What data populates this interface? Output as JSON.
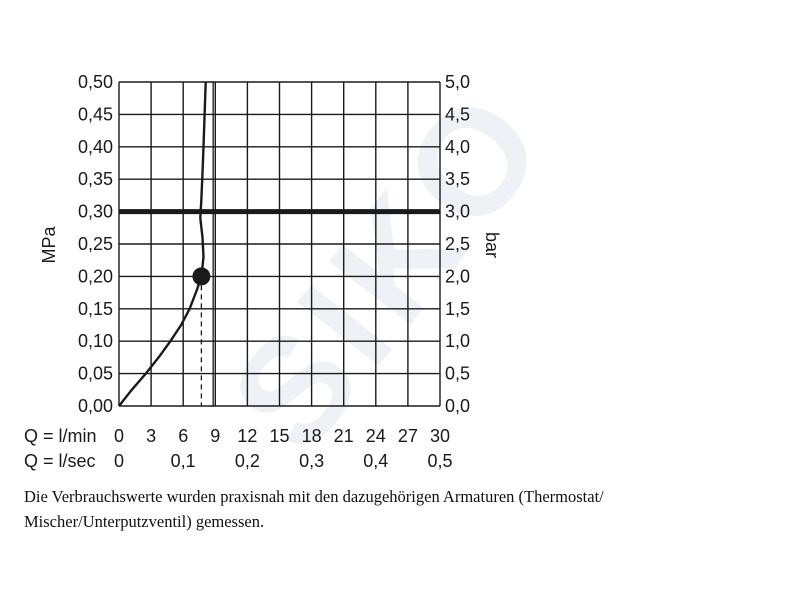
{
  "chart_data": {
    "type": "line",
    "y_left": {
      "label": "MPa",
      "range": [
        0,
        0.5
      ],
      "ticks": [
        "0,00",
        "0,05",
        "0,10",
        "0,15",
        "0,20",
        "0,25",
        "0,30",
        "0,35",
        "0,40",
        "0,45",
        "0,50"
      ]
    },
    "y_right": {
      "label": "bar",
      "range": [
        0,
        5
      ],
      "ticks": [
        "0,0",
        "0,5",
        "1,0",
        "1,5",
        "2,0",
        "2,5",
        "3,0",
        "3,5",
        "4,0",
        "4,5",
        "5,0"
      ]
    },
    "x": {
      "range": [
        0,
        30
      ],
      "rows": [
        {
          "label": "Q = l/min",
          "ticks": [
            {
              "v": 0,
              "t": "0"
            },
            {
              "v": 3,
              "t": "3"
            },
            {
              "v": 6,
              "t": "6"
            },
            {
              "v": 9,
              "t": "9"
            },
            {
              "v": 12,
              "t": "12"
            },
            {
              "v": 15,
              "t": "15"
            },
            {
              "v": 18,
              "t": "18"
            },
            {
              "v": 21,
              "t": "21"
            },
            {
              "v": 24,
              "t": "24"
            },
            {
              "v": 27,
              "t": "27"
            },
            {
              "v": 30,
              "t": "30"
            }
          ]
        },
        {
          "label": "Q = l/sec",
          "ticks": [
            {
              "v": 0,
              "t": "0"
            },
            {
              "v": 6,
              "t": "0,1"
            },
            {
              "v": 12,
              "t": "0,2"
            },
            {
              "v": 18,
              "t": "0,3"
            },
            {
              "v": 24,
              "t": "0,4"
            },
            {
              "v": 30,
              "t": "0,5"
            }
          ]
        }
      ]
    },
    "grid": true,
    "series": [
      {
        "style": "solid",
        "points": [
          [
            0,
            0
          ],
          [
            1.2,
            0.025
          ],
          [
            2.5,
            0.05
          ],
          [
            3.7,
            0.075
          ],
          [
            4.8,
            0.1
          ],
          [
            5.8,
            0.125
          ],
          [
            6.6,
            0.15
          ],
          [
            7.3,
            0.18
          ],
          [
            7.7,
            0.2
          ],
          [
            7.9,
            0.23
          ],
          [
            7.8,
            0.26
          ],
          [
            7.6,
            0.29
          ],
          [
            7.7,
            0.32
          ],
          [
            7.8,
            0.36
          ],
          [
            7.9,
            0.4
          ],
          [
            8.0,
            0.45
          ],
          [
            8.1,
            0.5
          ]
        ]
      }
    ],
    "highlight_point": {
      "x": 7.7,
      "y": 0.2
    },
    "reference_hline": {
      "y": 0.3
    },
    "reference_vlines": [
      {
        "x": 7.7,
        "y_to": 0.2,
        "style": "dashed"
      },
      {
        "x": 8.8,
        "y_to": 0.5,
        "style": "solid-thin"
      }
    ]
  },
  "note": {
    "line1": "Die Verbrauchswerte wurden praxisnah mit den dazugehörigen Armaturen (Thermostat/",
    "line2": "Mischer/Unterputzventil) gemessen."
  },
  "watermark": {
    "text": "SIKO",
    "color": "#eef2f6"
  },
  "colors": {
    "ink": "#1a1a1a",
    "grid": "#1a1a1a"
  }
}
